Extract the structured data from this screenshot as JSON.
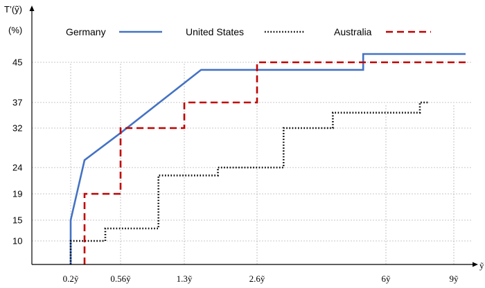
{
  "chart_data": {
    "type": "line",
    "ylabel_line1": "T’(ỹ)",
    "ylabel_line2": "(%)",
    "xlabel": "ỹ",
    "x_ticks": [
      {
        "label": "0.2ỹ",
        "value": 0.2
      },
      {
        "label": "0.56ỹ",
        "value": 0.56
      },
      {
        "label": "1.3ỹ",
        "value": 1.3
      },
      {
        "label": "2.6ỹ",
        "value": 2.6
      },
      {
        "label": "6ỹ",
        "value": 6
      },
      {
        "label": "9ỹ",
        "value": 9
      }
    ],
    "y_ticks": [
      10,
      15,
      19,
      24,
      32,
      37,
      45
    ],
    "xlim": [
      0,
      10
    ],
    "ylim": [
      5,
      50
    ],
    "grid": "dotted guides at labelled ticks",
    "legend_position": "top",
    "series": [
      {
        "name": "Germany",
        "color": "#4472C4",
        "style": "solid",
        "points": [
          [
            0.2,
            5
          ],
          [
            0.2,
            15
          ],
          [
            0.3,
            25.5
          ],
          [
            0.56,
            31
          ],
          [
            1.6,
            43.5
          ],
          [
            5.4,
            43.5
          ],
          [
            5.4,
            46.5
          ],
          [
            10,
            46.5
          ]
        ]
      },
      {
        "name": "United States",
        "color": "#000000",
        "style": "dotted",
        "points": [
          [
            0.2,
            5
          ],
          [
            0.2,
            10
          ],
          [
            0.45,
            10
          ],
          [
            0.45,
            13
          ],
          [
            1.0,
            13
          ],
          [
            1.0,
            22.5
          ],
          [
            1.9,
            22.5
          ],
          [
            1.9,
            24
          ],
          [
            3.3,
            24
          ],
          [
            3.3,
            32
          ],
          [
            4.6,
            32
          ],
          [
            4.6,
            35
          ],
          [
            7.5,
            35
          ],
          [
            7.5,
            37
          ],
          [
            7.9,
            37
          ]
        ]
      },
      {
        "name": "Australia",
        "color": "#C00000",
        "style": "dashed",
        "points": [
          [
            0.3,
            5
          ],
          [
            0.3,
            19
          ],
          [
            0.56,
            19
          ],
          [
            0.56,
            32
          ],
          [
            1.3,
            32
          ],
          [
            1.3,
            37
          ],
          [
            2.6,
            37
          ],
          [
            2.6,
            45
          ],
          [
            10,
            45
          ]
        ]
      }
    ]
  }
}
